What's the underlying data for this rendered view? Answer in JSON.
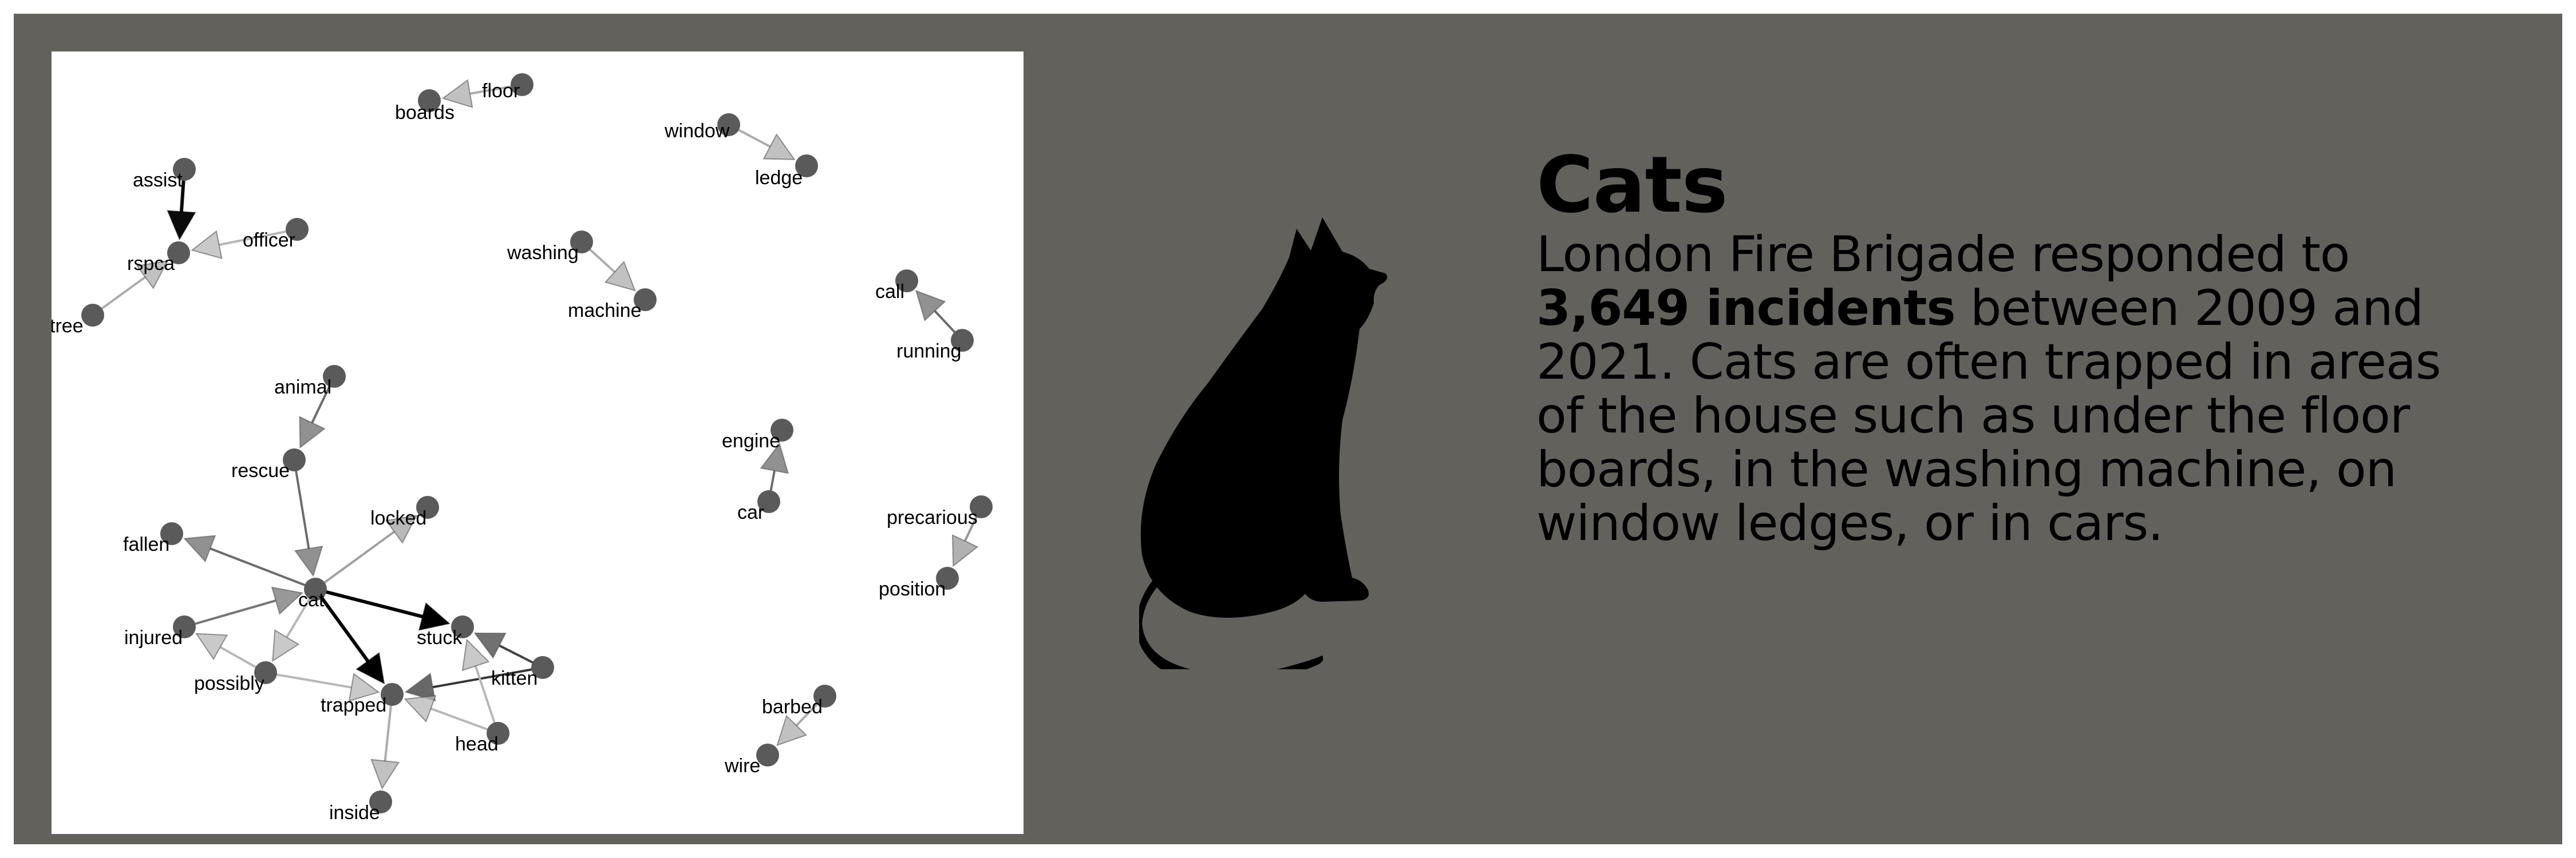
{
  "colors": {
    "frame_bg": "#62615c",
    "panel_bg": "#ffffff",
    "node_fill": "#5a5a5a",
    "text": "#000000",
    "cat": "#000000"
  },
  "info": {
    "title": "Cats",
    "description_before": "London Fire Brigade responded to ",
    "description_highlight": "3,649 incidents",
    "description_after": " between 2009 and 2021. Cats are often trapped in areas of the house such as under the floor boards, in the washing machine, on window ledges, or in cars."
  },
  "cat_icon": "cat-silhouette-icon",
  "network": {
    "nodes": [
      {
        "id": "boards",
        "label": "boards"
      },
      {
        "id": "floor",
        "label": "floor"
      },
      {
        "id": "window",
        "label": "window"
      },
      {
        "id": "ledge",
        "label": "ledge"
      },
      {
        "id": "assist",
        "label": "assist"
      },
      {
        "id": "officer",
        "label": "officer"
      },
      {
        "id": "rspca",
        "label": "rspca"
      },
      {
        "id": "tree",
        "label": "tree"
      },
      {
        "id": "washing",
        "label": "washing"
      },
      {
        "id": "machine",
        "label": "machine"
      },
      {
        "id": "call",
        "label": "call"
      },
      {
        "id": "running",
        "label": "running"
      },
      {
        "id": "animal",
        "label": "animal"
      },
      {
        "id": "rescue",
        "label": "rescue"
      },
      {
        "id": "engine",
        "label": "engine"
      },
      {
        "id": "car",
        "label": "car"
      },
      {
        "id": "locked",
        "label": "locked"
      },
      {
        "id": "precarious",
        "label": "precarious"
      },
      {
        "id": "position",
        "label": "position"
      },
      {
        "id": "fallen",
        "label": "fallen"
      },
      {
        "id": "cat",
        "label": "cat"
      },
      {
        "id": "injured",
        "label": "injured"
      },
      {
        "id": "stuck",
        "label": "stuck"
      },
      {
        "id": "possibly",
        "label": "possibly"
      },
      {
        "id": "kitten",
        "label": "kitten"
      },
      {
        "id": "trapped",
        "label": "trapped"
      },
      {
        "id": "head",
        "label": "head"
      },
      {
        "id": "barbed",
        "label": "barbed"
      },
      {
        "id": "wire",
        "label": "wire"
      },
      {
        "id": "inside",
        "label": "inside"
      }
    ],
    "edges": [
      {
        "from": "floor",
        "to": "boards",
        "strength": 0.2
      },
      {
        "from": "window",
        "to": "ledge",
        "strength": 0.2
      },
      {
        "from": "assist",
        "to": "rspca",
        "strength": 0.95
      },
      {
        "from": "officer",
        "to": "rspca",
        "strength": 0.15
      },
      {
        "from": "tree",
        "to": "rspca",
        "strength": 0.2
      },
      {
        "from": "washing",
        "to": "machine",
        "strength": 0.2
      },
      {
        "from": "running",
        "to": "call",
        "strength": 0.5
      },
      {
        "from": "animal",
        "to": "rescue",
        "strength": 0.5
      },
      {
        "from": "rescue",
        "to": "cat",
        "strength": 0.5
      },
      {
        "from": "car",
        "to": "engine",
        "strength": 0.5
      },
      {
        "from": "precarious",
        "to": "position",
        "strength": 0.3
      },
      {
        "from": "cat",
        "to": "fallen",
        "strength": 0.5
      },
      {
        "from": "cat",
        "to": "locked",
        "strength": 0.25
      },
      {
        "from": "injured",
        "to": "cat",
        "strength": 0.45
      },
      {
        "from": "cat",
        "to": "stuck",
        "strength": 1.0
      },
      {
        "from": "cat",
        "to": "trapped",
        "strength": 1.0
      },
      {
        "from": "cat",
        "to": "possibly",
        "strength": 0.15
      },
      {
        "from": "possibly",
        "to": "injured",
        "strength": 0.15
      },
      {
        "from": "possibly",
        "to": "trapped",
        "strength": 0.15
      },
      {
        "from": "kitten",
        "to": "stuck",
        "strength": 0.7
      },
      {
        "from": "kitten",
        "to": "trapped",
        "strength": 0.75
      },
      {
        "from": "head",
        "to": "stuck",
        "strength": 0.15
      },
      {
        "from": "head",
        "to": "trapped",
        "strength": 0.15
      },
      {
        "from": "trapped",
        "to": "inside",
        "strength": 0.2
      },
      {
        "from": "barbed",
        "to": "wire",
        "strength": 0.2
      }
    ]
  }
}
